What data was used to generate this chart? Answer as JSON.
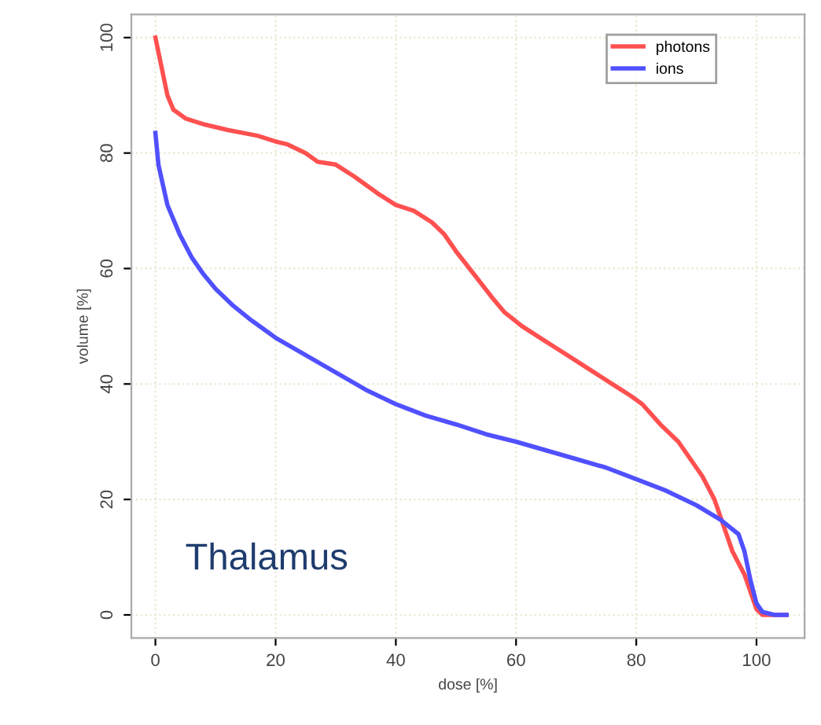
{
  "chart_data": {
    "type": "line",
    "xlabel": "dose [%]",
    "ylabel": "volume [%]",
    "xlim": [
      -4,
      108
    ],
    "ylim": [
      -4,
      104
    ],
    "xticks": [
      0,
      20,
      40,
      60,
      80,
      100
    ],
    "yticks": [
      0,
      20,
      40,
      60,
      80,
      100
    ],
    "grid": true,
    "legend": "top right",
    "annotations": [
      "Thalamus"
    ],
    "series": [
      {
        "name": "photons",
        "color": "#ff5050",
        "x": [
          0,
          1,
          2,
          3,
          5,
          8,
          12,
          17,
          20,
          22,
          25,
          27,
          30,
          33,
          37,
          40,
          43,
          46,
          48,
          50,
          53,
          56,
          58,
          61,
          64,
          67,
          70,
          73,
          76,
          79,
          81,
          84,
          87,
          89,
          91,
          93,
          94,
          95,
          96,
          98,
          99,
          100,
          101,
          103,
          105
        ],
        "values": [
          100,
          95,
          90,
          87.5,
          86,
          85,
          84,
          83,
          82,
          81.5,
          80,
          78.5,
          78,
          76,
          73,
          71,
          70,
          68,
          66,
          63,
          59,
          55,
          52.5,
          50,
          48,
          46,
          44,
          42,
          40,
          38,
          36.5,
          33,
          30,
          27,
          24,
          20,
          17,
          14,
          11,
          7,
          4,
          1,
          0,
          0,
          0
        ]
      },
      {
        "name": "ions",
        "color": "#5050ff",
        "x": [
          0,
          0.5,
          2,
          4,
          6,
          8,
          10,
          13,
          16,
          20,
          25,
          30,
          35,
          40,
          45,
          50,
          55,
          60,
          65,
          70,
          75,
          80,
          85,
          90,
          94,
          97,
          98,
          99,
          100,
          101,
          103,
          105
        ],
        "values": [
          83.5,
          78,
          71,
          66,
          62,
          59,
          56.5,
          53.5,
          51,
          48,
          45,
          42,
          39,
          36.5,
          34.5,
          33,
          31.3,
          30,
          28.5,
          27,
          25.5,
          23.5,
          21.5,
          19,
          16.5,
          14,
          11,
          6,
          2,
          0.5,
          0,
          0
        ]
      }
    ]
  }
}
